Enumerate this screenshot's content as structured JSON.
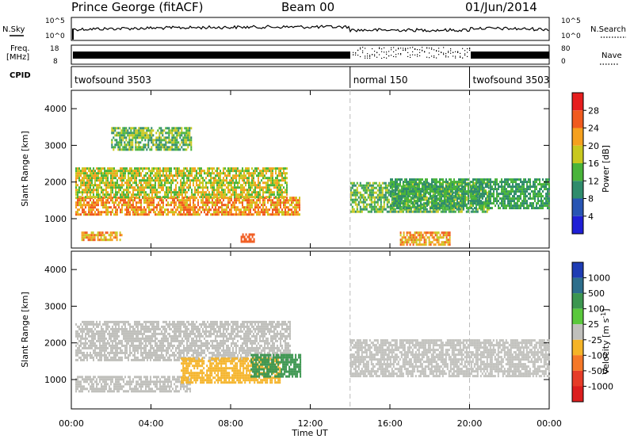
{
  "header": {
    "station": "Prince George (fitACF)",
    "beam": "Beam 00",
    "date": "01/Jun/2014"
  },
  "strip_labels": {
    "nsky": "N.Sky",
    "freq_line1": "Freq.",
    "freq_line2": "[MHz]",
    "cpid": "CPID",
    "nsearch": "N.Search",
    "nave": "Nave"
  },
  "strip_ticks": {
    "noise_left_top": "10^5",
    "noise_left_bottom": "10^0",
    "noise_right_top": "10^5",
    "noise_right_bottom": "10^0",
    "freq_left_top": "18",
    "freq_left_bottom": "8",
    "nave_right_top": "80",
    "nave_right_bottom": "0"
  },
  "cpid_segments": [
    {
      "label": "twofsound 3503",
      "start_hour": 0
    },
    {
      "label": "normal 150",
      "start_hour": 14
    },
    {
      "label": "twofsound 3503",
      "start_hour": 20
    }
  ],
  "x_axis": {
    "label": "Time UT",
    "ticks": [
      "00:00",
      "04:00",
      "08:00",
      "12:00",
      "16:00",
      "20:00",
      "00:00"
    ]
  },
  "y_axis": {
    "label": "Slant Range [km]",
    "ticks": [
      "1000",
      "2000",
      "3000",
      "4000"
    ]
  },
  "colorbars": {
    "power": {
      "label": "Power [dB]",
      "ticks": [
        "4",
        "8",
        "12",
        "16",
        "20",
        "24",
        "28"
      ],
      "colors": [
        "#1f1fd6",
        "#2855b4",
        "#2f8c6c",
        "#49b43a",
        "#c8c81e",
        "#f5a01e",
        "#f05a1e",
        "#e61e1e"
      ]
    },
    "velocity": {
      "label": "Velocity [m s^-1]",
      "ticks": [
        "1000",
        "500",
        "100",
        "25",
        "-25",
        "-100",
        "-500",
        "-1000"
      ],
      "colors": [
        "#1e3cb4",
        "#2d6e8c",
        "#3c9650",
        "#5ac83c",
        "#c0c0bc",
        "#f5b428",
        "#f57828",
        "#e63c28",
        "#dc1e1e"
      ]
    }
  },
  "chart_data": [
    {
      "type": "heatmap",
      "title": "Power",
      "xlabel": "Time UT",
      "ylabel": "Slant Range [km]",
      "xlim": [
        0,
        24
      ],
      "ylim": [
        200,
        4500
      ],
      "colorbar_label": "Power [dB]",
      "colorbar_range": [
        0,
        32
      ],
      "regions": [
        {
          "t": [
            0.2,
            11.5
          ],
          "range": [
            1100,
            1600
          ],
          "level": "18-28"
        },
        {
          "t": [
            0.2,
            10.8
          ],
          "range": [
            1600,
            2400
          ],
          "level": "12-24"
        },
        {
          "t": [
            2.0,
            6.0
          ],
          "range": [
            2900,
            3500
          ],
          "level": "8-20"
        },
        {
          "t": [
            0.5,
            2.5
          ],
          "range": [
            400,
            650
          ],
          "level": "16-28"
        },
        {
          "t": [
            8.5,
            9.2
          ],
          "range": [
            400,
            600
          ],
          "level": "24-28"
        },
        {
          "t": [
            14.0,
            21.0
          ],
          "range": [
            1200,
            2000
          ],
          "level": "8-20"
        },
        {
          "t": [
            16.0,
            24.0
          ],
          "range": [
            1300,
            2100
          ],
          "level": "8-16"
        },
        {
          "t": [
            16.5,
            19.0
          ],
          "range": [
            300,
            650
          ],
          "level": "16-28"
        }
      ]
    },
    {
      "type": "heatmap",
      "title": "Velocity",
      "xlabel": "Time UT",
      "ylabel": "Slant Range [km]",
      "xlim": [
        0,
        24
      ],
      "ylim": [
        200,
        4500
      ],
      "colorbar_label": "Velocity [m s^-1]",
      "colorbar_range": [
        -1000,
        1000
      ],
      "regions": [
        {
          "t": [
            0.2,
            11.0
          ],
          "range": [
            1500,
            2600
          ],
          "level": "-25 to 25"
        },
        {
          "t": [
            0.2,
            6.0
          ],
          "range": [
            700,
            1100
          ],
          "level": "-25 to 25"
        },
        {
          "t": [
            5.5,
            10.5
          ],
          "range": [
            900,
            1600
          ],
          "level": "-100 to -25"
        },
        {
          "t": [
            9.0,
            11.5
          ],
          "range": [
            1100,
            1700
          ],
          "level": "100"
        },
        {
          "t": [
            14.0,
            24.0
          ],
          "range": [
            1100,
            2100
          ],
          "level": "-25 to 25"
        }
      ]
    }
  ]
}
